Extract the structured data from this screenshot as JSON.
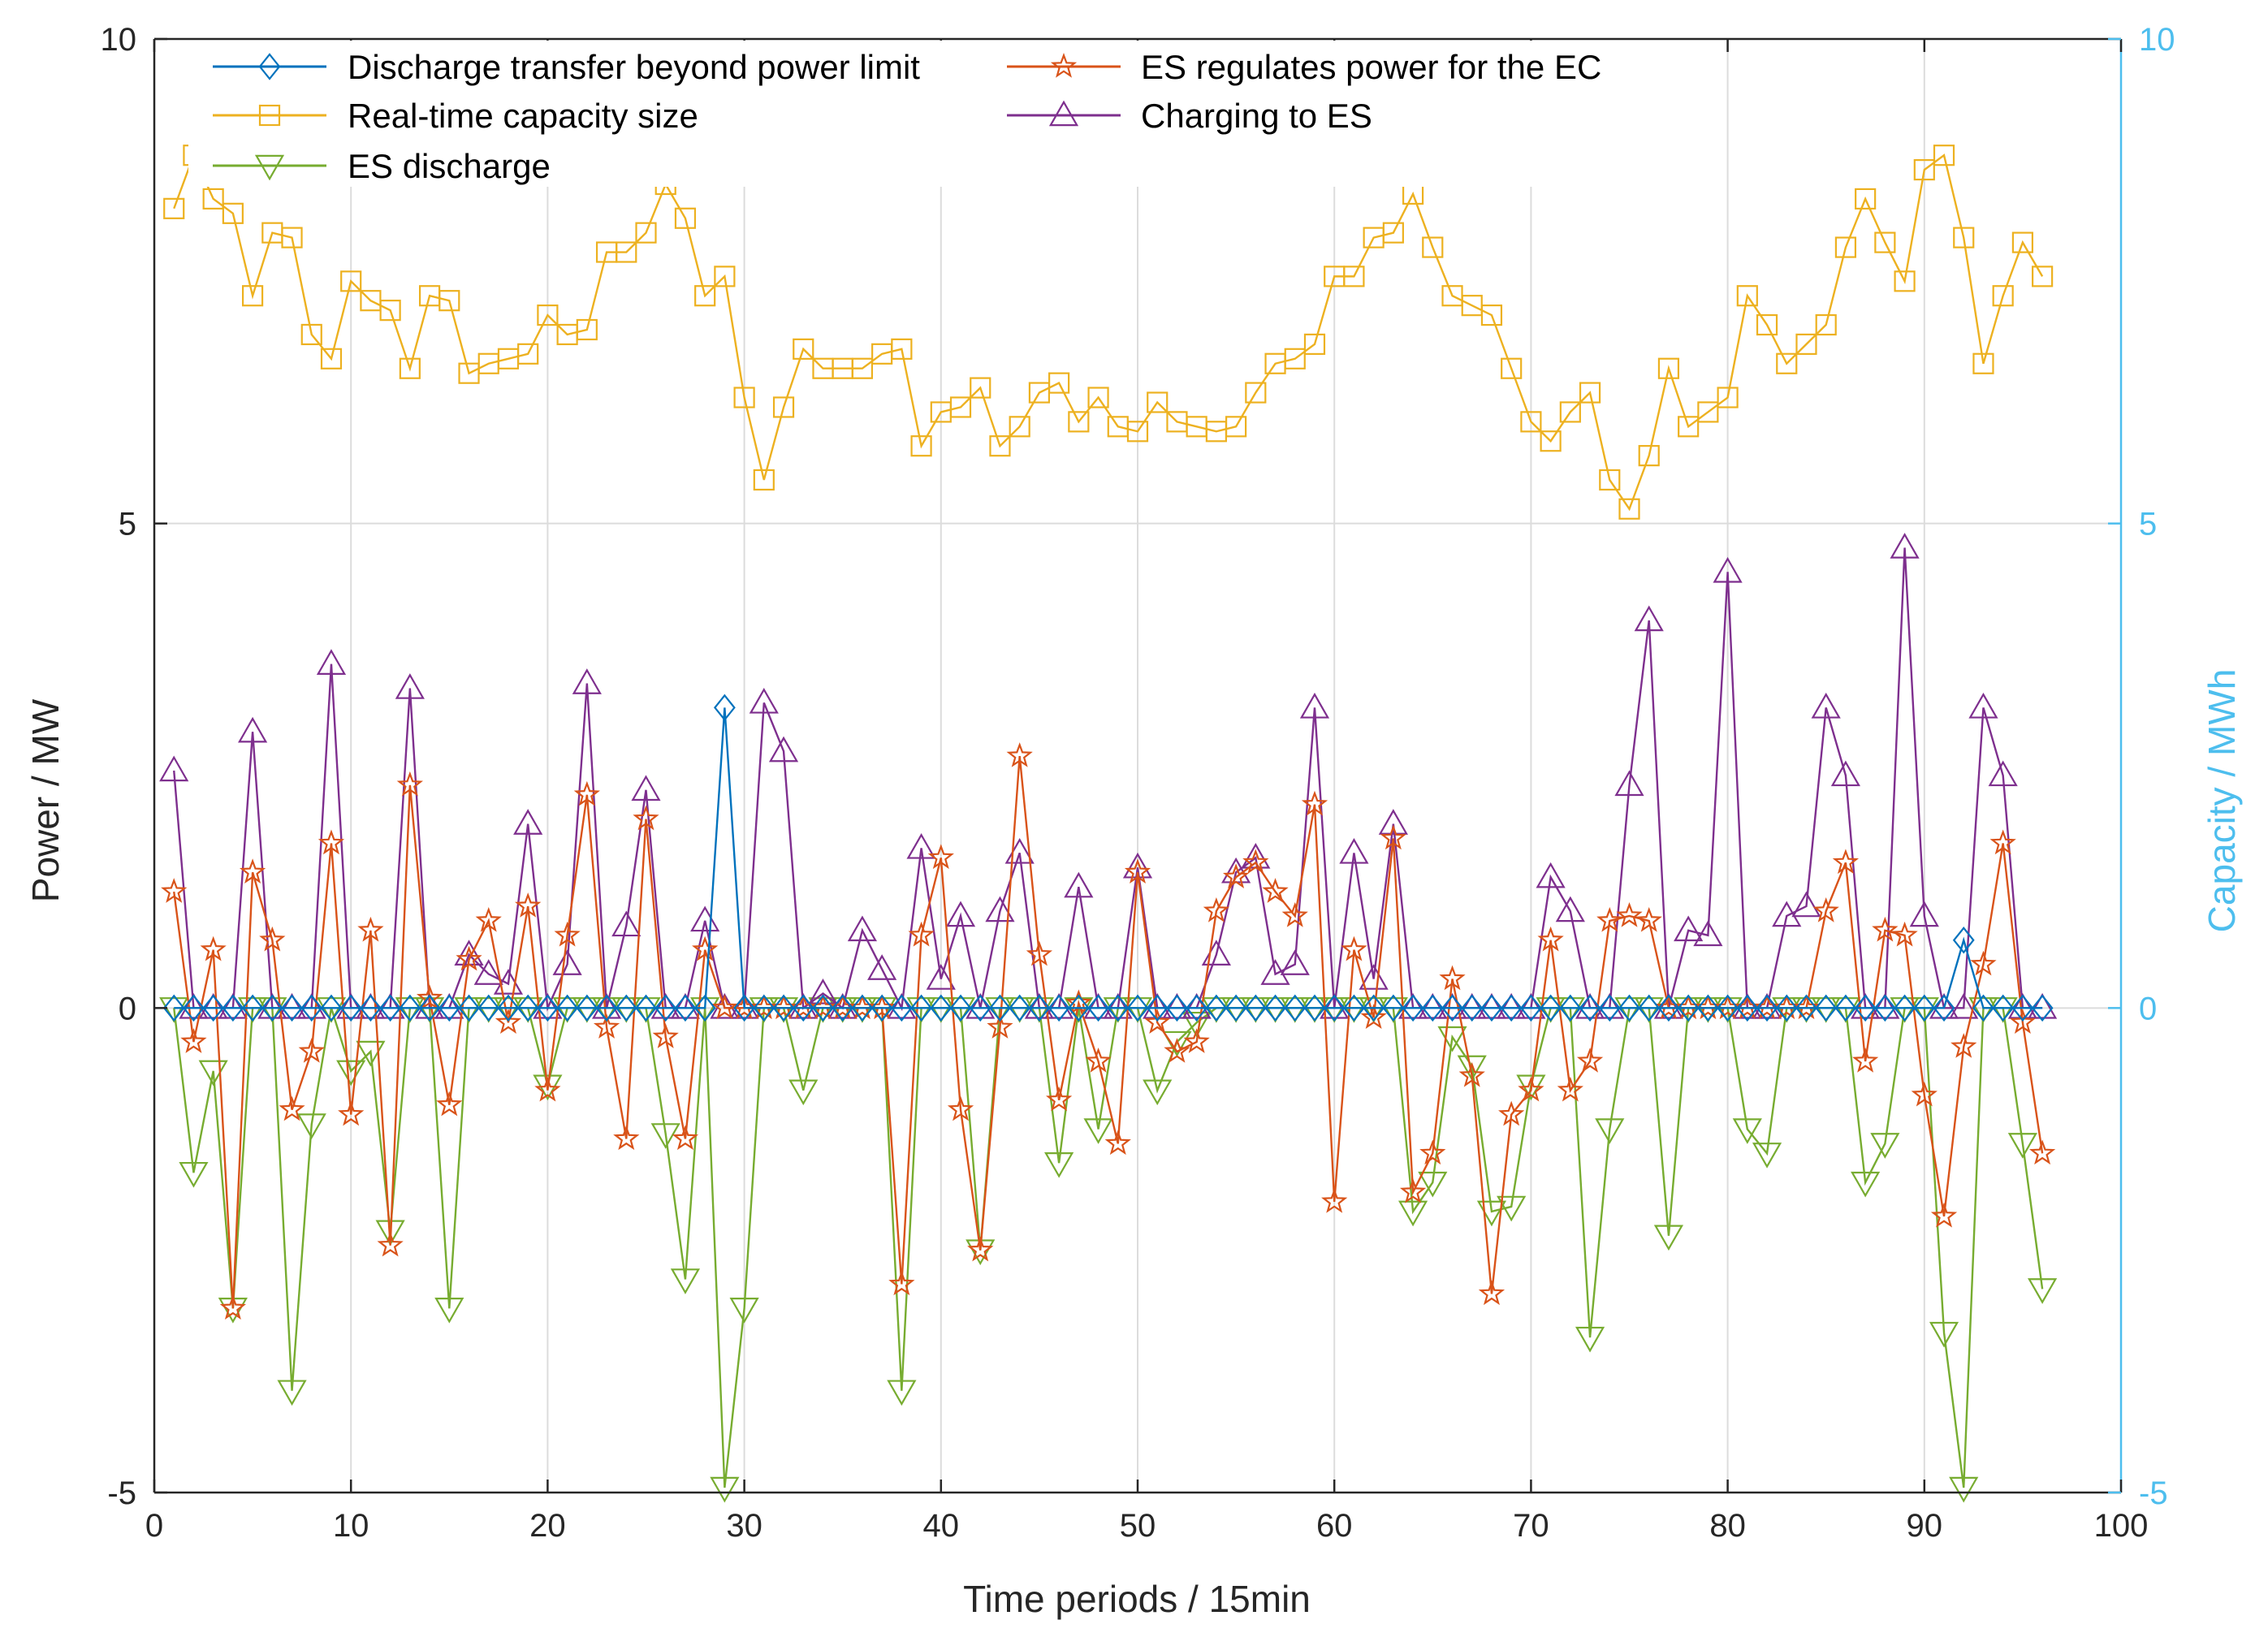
{
  "chart_data": {
    "type": "line",
    "title": "",
    "xlabel": "Time periods / 15min",
    "ylabel": "Power / MW",
    "y2label": "Capacity / MWh",
    "xlim": [
      0,
      100
    ],
    "ylim": [
      -5,
      10
    ],
    "y2lim": [
      -5,
      10
    ],
    "xticks": [
      0,
      10,
      20,
      30,
      40,
      50,
      60,
      70,
      80,
      90,
      100
    ],
    "yticks": [
      -5,
      0,
      5,
      10
    ],
    "y2ticks": [
      -5,
      0,
      5,
      10
    ],
    "grid": true,
    "legend_position": "top-left (inside plot, two columns)",
    "x": [
      1,
      2,
      3,
      4,
      5,
      6,
      7,
      8,
      9,
      10,
      11,
      12,
      13,
      14,
      15,
      16,
      17,
      18,
      19,
      20,
      21,
      22,
      23,
      24,
      25,
      26,
      27,
      28,
      29,
      30,
      31,
      32,
      33,
      34,
      35,
      36,
      37,
      38,
      39,
      40,
      41,
      42,
      43,
      44,
      45,
      46,
      47,
      48,
      49,
      50,
      51,
      52,
      53,
      54,
      55,
      56,
      57,
      58,
      59,
      60,
      61,
      62,
      63,
      64,
      65,
      66,
      67,
      68,
      69,
      70,
      71,
      72,
      73,
      74,
      75,
      76,
      77,
      78,
      79,
      80,
      81,
      82,
      83,
      84,
      85,
      86,
      87,
      88,
      89,
      90,
      91,
      92,
      93,
      94,
      95,
      96
    ],
    "series": [
      {
        "name": "Discharge transfer beyond power limit",
        "color": "#0072BD",
        "marker": "diamond",
        "axis": "left",
        "values": [
          0,
          0,
          0,
          0,
          0,
          0,
          0,
          0,
          0,
          0,
          0,
          0,
          0,
          0,
          0,
          0,
          0,
          0,
          0,
          0,
          0,
          0,
          0,
          0,
          0,
          0,
          0,
          0,
          3.1,
          0,
          0,
          0,
          0,
          0,
          0,
          0,
          0,
          0,
          0,
          0,
          0,
          0,
          0,
          0,
          0,
          0,
          0,
          0,
          0,
          0,
          0,
          0,
          0,
          0,
          0,
          0,
          0,
          0,
          0,
          0,
          0,
          0,
          0,
          0,
          0,
          0,
          0,
          0,
          0,
          0,
          0,
          0,
          0,
          0,
          0,
          0,
          0,
          0,
          0,
          0,
          0,
          0,
          0,
          0,
          0,
          0,
          0,
          0,
          0,
          0,
          0,
          0.7,
          0,
          0,
          0,
          0
        ]
      },
      {
        "name": "ES regulates power for the EC",
        "color": "#D95319",
        "marker": "star",
        "axis": "left",
        "values": [
          1.2,
          -0.35,
          0.6,
          -3.1,
          1.4,
          0.7,
          -1.05,
          -0.45,
          1.7,
          -1.1,
          0.8,
          -2.45,
          2.3,
          0.1,
          -1.0,
          0.5,
          0.9,
          -0.15,
          1.05,
          -0.85,
          0.75,
          2.2,
          -0.2,
          -1.35,
          1.95,
          -0.3,
          -1.35,
          0.6,
          0,
          0,
          0,
          0,
          0,
          0,
          0,
          0,
          0,
          -2.85,
          0.75,
          1.55,
          -1.05,
          -2.5,
          -0.2,
          2.6,
          0.55,
          -0.95,
          0.05,
          -0.55,
          -1.4,
          1.4,
          -0.15,
          -0.45,
          -0.35,
          1.0,
          1.35,
          1.5,
          1.2,
          0.95,
          2.1,
          -2.0,
          0.6,
          -0.1,
          1.75,
          -1.9,
          -1.5,
          0.3,
          -0.7,
          -2.95,
          -1.1,
          -0.85,
          0.7,
          -0.85,
          -0.55,
          0.9,
          0.95,
          0.9,
          0,
          0,
          0,
          0,
          0,
          0,
          0,
          0,
          1.0,
          1.5,
          -0.55,
          0.8,
          0.75,
          -0.9,
          -2.15,
          -0.4,
          0.45,
          1.7,
          -0.15,
          -1.5
        ]
      },
      {
        "name": "Real-time capacity size",
        "color": "#EDB120",
        "marker": "square",
        "axis": "right",
        "values": [
          8.25,
          8.8,
          8.35,
          8.2,
          7.35,
          8.0,
          7.95,
          6.95,
          6.7,
          7.5,
          7.3,
          7.2,
          6.6,
          7.35,
          7.3,
          6.55,
          6.65,
          6.7,
          6.75,
          7.15,
          6.95,
          7.0,
          7.8,
          7.8,
          8.0,
          8.5,
          8.15,
          7.35,
          7.55,
          6.3,
          5.45,
          6.2,
          6.8,
          6.6,
          6.6,
          6.6,
          6.75,
          6.8,
          5.8,
          6.15,
          6.2,
          6.4,
          5.8,
          6.0,
          6.35,
          6.45,
          6.05,
          6.3,
          6.0,
          5.95,
          6.25,
          6.05,
          6.0,
          5.95,
          6.0,
          6.35,
          6.65,
          6.7,
          6.85,
          7.55,
          7.55,
          7.95,
          8.0,
          8.4,
          7.85,
          7.35,
          7.25,
          7.15,
          6.6,
          6.05,
          5.85,
          6.15,
          6.35,
          5.45,
          5.15,
          5.7,
          6.6,
          6.0,
          6.15,
          6.3,
          7.35,
          7.05,
          6.65,
          6.85,
          7.05,
          7.85,
          8.35,
          7.9,
          7.5,
          8.65,
          8.8,
          7.95,
          6.65,
          7.35,
          7.9,
          7.55
        ]
      },
      {
        "name": "Charging to ES",
        "color": "#7E2F8E",
        "marker": "triangle-up",
        "axis": "left",
        "values": [
          2.45,
          0,
          0,
          0,
          2.85,
          0,
          0,
          0,
          3.55,
          0,
          0,
          0,
          3.3,
          0,
          0,
          0.55,
          0.35,
          0.25,
          1.9,
          0,
          0.45,
          3.35,
          0,
          0.85,
          2.25,
          0,
          0,
          0.9,
          0,
          0,
          3.15,
          2.65,
          0,
          0.15,
          0,
          0.8,
          0.4,
          0,
          1.65,
          0.3,
          0.95,
          0,
          1.0,
          1.6,
          0,
          0,
          1.25,
          0,
          0,
          1.45,
          0,
          0,
          0,
          0.55,
          1.4,
          1.55,
          0.35,
          0.45,
          3.1,
          0,
          1.6,
          0.3,
          1.9,
          0,
          0,
          0,
          0,
          0,
          0,
          0,
          1.35,
          1.0,
          0,
          0,
          2.3,
          4.0,
          0,
          0.8,
          0.75,
          4.5,
          0,
          0,
          0.95,
          1.05,
          3.1,
          2.4,
          0,
          0,
          4.75,
          0.95,
          0,
          0,
          3.1,
          2.4,
          0,
          0
        ]
      },
      {
        "name": "ES discharge",
        "color": "#77AC30",
        "marker": "triangle-down",
        "axis": "left",
        "values": [
          0,
          -1.7,
          -0.65,
          -3.1,
          0,
          0,
          -3.95,
          -1.2,
          0,
          -0.65,
          -0.45,
          -2.3,
          0,
          0,
          -3.1,
          0,
          0,
          0,
          0,
          -0.8,
          0,
          0,
          0,
          0,
          0,
          -1.3,
          -2.8,
          0,
          -4.95,
          -3.1,
          0,
          0,
          -0.85,
          0,
          0,
          0,
          0,
          -3.95,
          0,
          0,
          0,
          -2.5,
          0,
          0,
          0,
          -1.6,
          0,
          -1.25,
          0,
          0,
          -0.85,
          -0.35,
          -0.15,
          0,
          0,
          0,
          0,
          0,
          0,
          0,
          0,
          0,
          0,
          -2.1,
          -1.8,
          -0.3,
          -0.6,
          -2.1,
          -2.05,
          -0.8,
          0,
          0,
          -3.4,
          -1.25,
          0,
          0,
          -2.35,
          0,
          0,
          0,
          -1.25,
          -1.5,
          0,
          0,
          0,
          0,
          -1.8,
          -1.4,
          0,
          0,
          -3.35,
          -4.95,
          0,
          0,
          -1.4,
          -2.9
        ]
      }
    ]
  }
}
